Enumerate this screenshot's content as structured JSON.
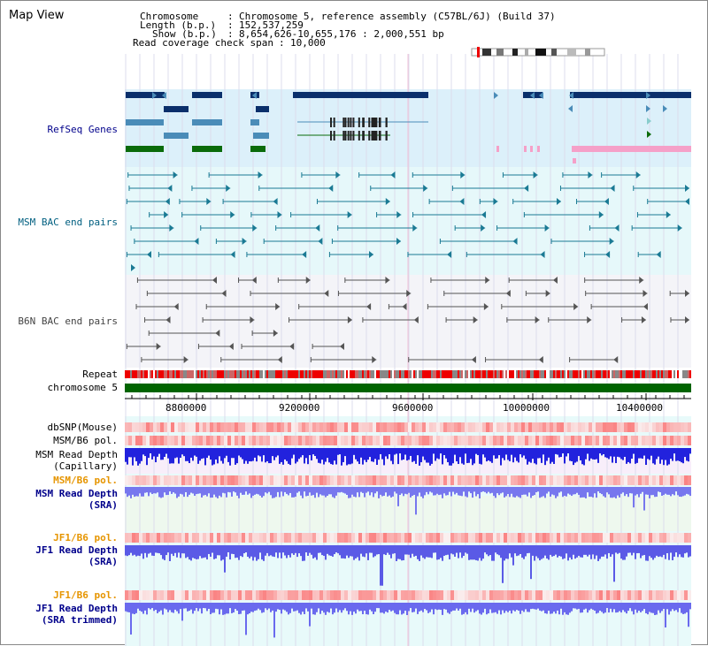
{
  "view_title": "Map View",
  "info": {
    "chromosome_key": "Chromosome",
    "chromosome_value": "Chromosome 5, reference assembly (C57BL/6J) (Build 37)",
    "length_key": "Length (b.p.)",
    "length_value": "152,537,259",
    "show_key": "Show (b.p.)",
    "show_value": "8,654,626-10,655,176 : 2,000,551 bp",
    "coverage_key": "Read coverage check span",
    "coverage_value": "10,000"
  },
  "tracks": {
    "refseq": "RefSeq Genes",
    "msm_bac": "MSM BAC end pairs",
    "b6n_bac": "B6N BAC end pairs",
    "repeat": "Repeat",
    "chromosome": "chromosome 5",
    "dbsnp": "dbSNP(Mouse)",
    "msm_b6_pol_1": "MSM/B6 pol.",
    "msm_depth_cap_1": "MSM Read Depth",
    "msm_depth_cap_2": "(Capillary)",
    "msm_b6_pol_2": "MSM/B6 pol.",
    "msm_depth_sra_1": "MSM Read Depth",
    "msm_depth_sra_2": "(SRA)",
    "jf1_b6_pol_1": "JF1/B6 pol.",
    "jf1_depth_sra_1": "JF1 Read Depth",
    "jf1_depth_sra_2": "(SRA)",
    "jf1_b6_pol_2": "JF1/B6 pol.",
    "jf1_depth_trim_1": "JF1 Read Depth",
    "jf1_depth_trim_2": "(SRA trimmed)"
  },
  "axis_ticks": [
    "8800000",
    "9200000",
    "9600000",
    "10000000",
    "10400000"
  ],
  "colors": {
    "label_blue": "#00008b",
    "label_orange": "#e69500",
    "label_teal": "#005f80",
    "refseq_bg": "#dcf0fa",
    "gene_navy": "#0a2f6b",
    "gene_steel": "#4a8cb8",
    "gene_green": "#0a6b0a",
    "gene_pink": "#f5a0c8",
    "bac_bg": "#e6f8fa",
    "chromosome_green": "#006400",
    "depth_blue": "#3333dd",
    "pol_red": "#ee3333"
  }
}
